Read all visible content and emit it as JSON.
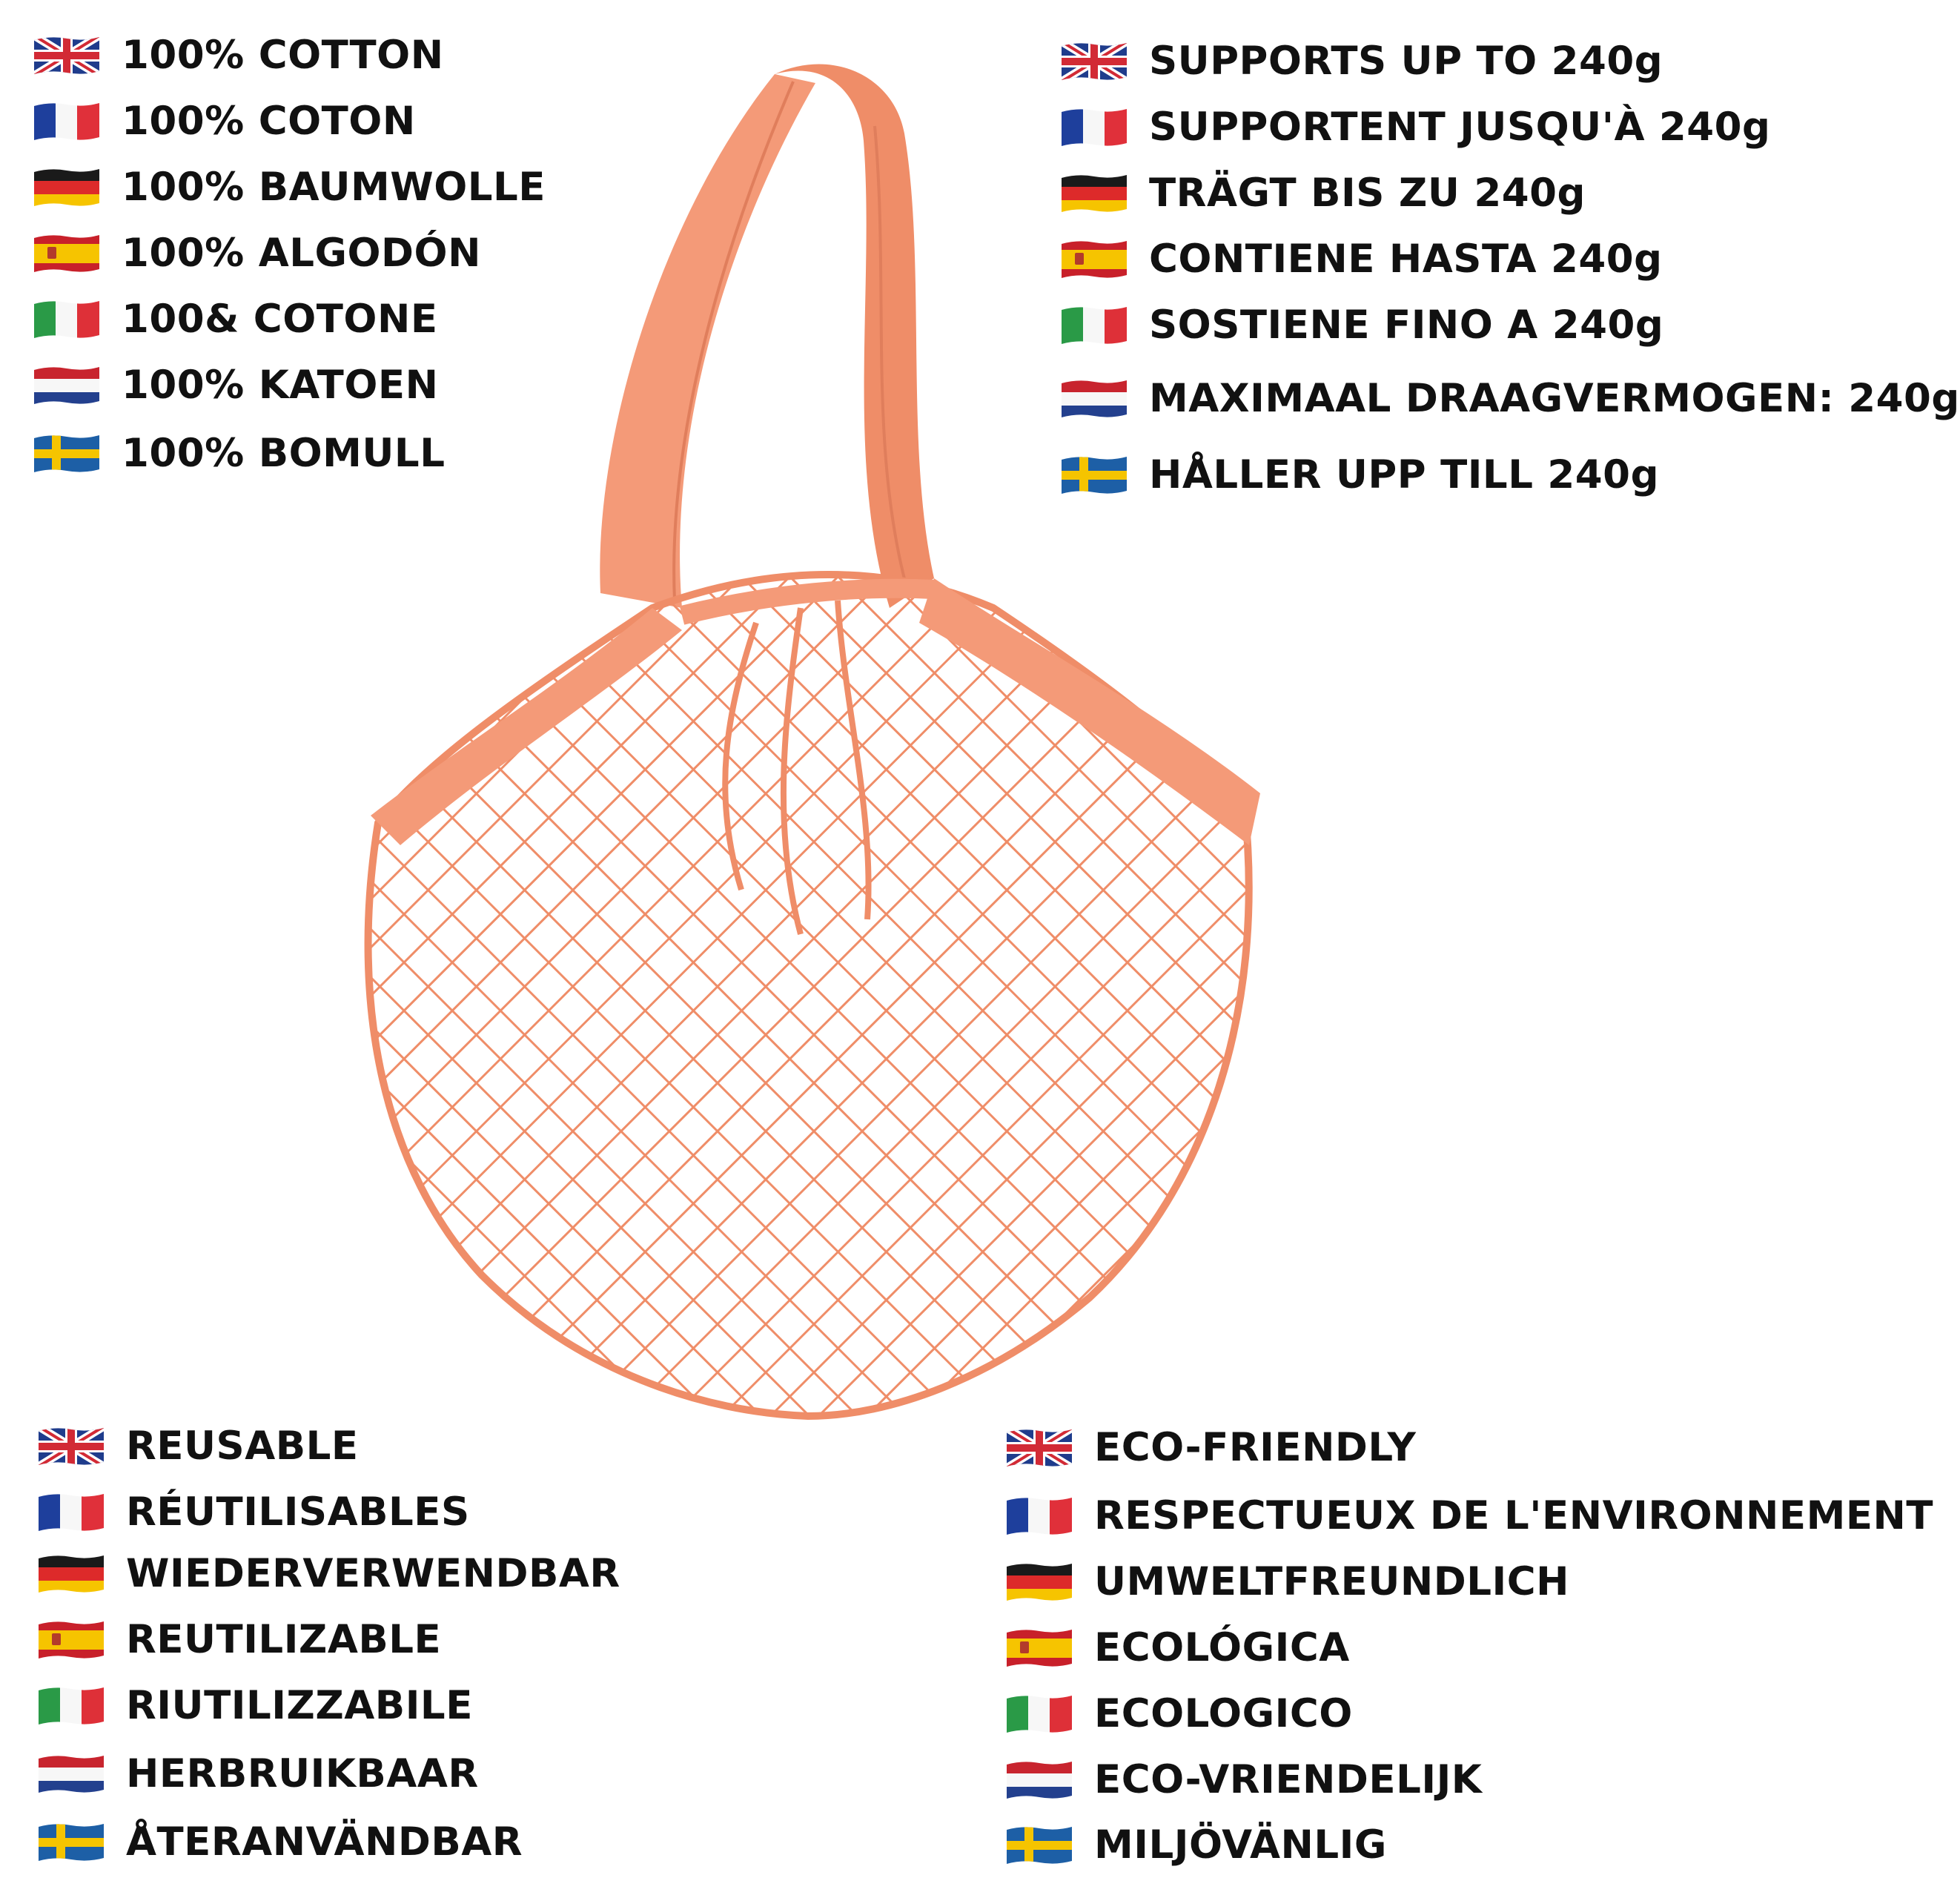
{
  "colors": {
    "bag": "#f49a78",
    "bag_dark": "#e07e5c",
    "text": "#111111"
  },
  "product_image": {
    "name": "orange cotton mesh string bag"
  },
  "groups": {
    "material": [
      {
        "flag": "uk-flag-icon",
        "text": "100% COTTON"
      },
      {
        "flag": "france-flag-icon",
        "text": "100% COTON"
      },
      {
        "flag": "germany-flag-icon",
        "text": "100% BAUMWOLLE"
      },
      {
        "flag": "spain-flag-icon",
        "text": "100% ALGODÓN"
      },
      {
        "flag": "italy-flag-icon",
        "text": "100& COTONE"
      },
      {
        "flag": "netherlands-flag-icon",
        "text": "100% KATOEN"
      },
      {
        "flag": "sweden-flag-icon",
        "text": "100% BOMULL"
      }
    ],
    "capacity": [
      {
        "flag": "uk-flag-icon",
        "text": "SUPPORTS UP TO 240g"
      },
      {
        "flag": "france-flag-icon",
        "text": "SUPPORTENT JUSQU'À 240g"
      },
      {
        "flag": "germany-flag-icon",
        "text": "TRÄGT BIS ZU 240g"
      },
      {
        "flag": "spain-flag-icon",
        "text": "CONTIENE HASTA 240g"
      },
      {
        "flag": "italy-flag-icon",
        "text": "SOSTIENE FINO A 240g"
      },
      {
        "flag": "netherlands-flag-icon",
        "text": "MAXIMAAL DRAAGVERMOGEN: 240g"
      },
      {
        "flag": "sweden-flag-icon",
        "text": "HÅLLER UPP TILL 240g"
      }
    ],
    "reusable": [
      {
        "flag": "uk-flag-icon",
        "text": "REUSABLE"
      },
      {
        "flag": "france-flag-icon",
        "text": "RÉUTILISABLES"
      },
      {
        "flag": "germany-flag-icon",
        "text": "WIEDERVERWENDBAR"
      },
      {
        "flag": "spain-flag-icon",
        "text": "REUTILIZABLE"
      },
      {
        "flag": "italy-flag-icon",
        "text": "RIUTILIZZABILE"
      },
      {
        "flag": "netherlands-flag-icon",
        "text": "HERBRUIKBAAR"
      },
      {
        "flag": "sweden-flag-icon",
        "text": "ÅTERANVÄNDBAR"
      }
    ],
    "eco": [
      {
        "flag": "uk-flag-icon",
        "text": "ECO-FRIENDLY"
      },
      {
        "flag": "france-flag-icon",
        "text": "RESPECTUEUX DE L'ENVIRONNEMENT"
      },
      {
        "flag": "germany-flag-icon",
        "text": "UMWELTFREUNDLICH"
      },
      {
        "flag": "spain-flag-icon",
        "text": "ECOLÓGICA"
      },
      {
        "flag": "italy-flag-icon",
        "text": "ECOLOGICO"
      },
      {
        "flag": "netherlands-flag-icon",
        "text": "ECO-VRIENDELIJK"
      },
      {
        "flag": "sweden-flag-icon",
        "text": "MILJÖVÄNLIG"
      }
    ]
  }
}
